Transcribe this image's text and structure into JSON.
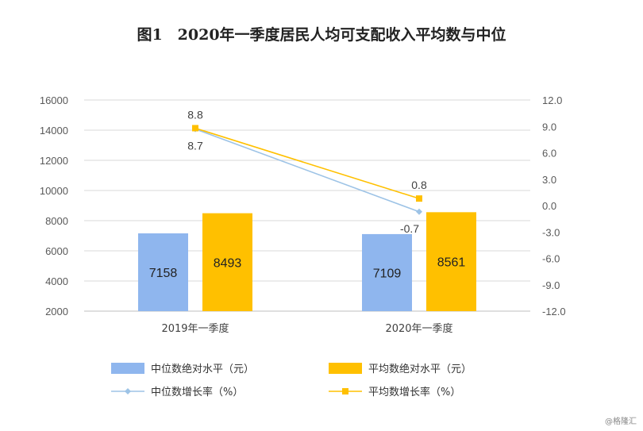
{
  "title": "图1　2020年一季度居民人均可支配收入平均数与中位",
  "watermark": "@格隆汇",
  "chart_data": {
    "type": "bar",
    "categories": [
      "2019年一季度",
      "2020年一季度"
    ],
    "left_axis": {
      "min": 2000,
      "max": 16000,
      "step": 2000,
      "ticks": [
        "2000",
        "4000",
        "6000",
        "8000",
        "10000",
        "12000",
        "14000",
        "16000"
      ]
    },
    "right_axis": {
      "min": -12,
      "max": 12,
      "step": 3,
      "ticks": [
        "-12.0",
        "-9.0",
        "-6.0",
        "-3.0",
        "0.0",
        "3.0",
        "6.0",
        "9.0",
        "12.0"
      ]
    },
    "grid": true,
    "legend_position": "bottom",
    "bar_series": [
      {
        "name": "中位数绝对水平（元）",
        "values": [
          7158,
          7109
        ],
        "labels": [
          "7158",
          "7109"
        ],
        "color": "#8fb6ee"
      },
      {
        "name": "平均数绝对水平（元）",
        "values": [
          8493,
          8561
        ],
        "labels": [
          "8493",
          "8561"
        ],
        "color": "#ffc000"
      }
    ],
    "line_series": [
      {
        "name": "中位数增长率（%）",
        "values": [
          8.7,
          -0.7
        ],
        "labels": [
          "8.7",
          "-0.7"
        ],
        "color": "#9dc3e6"
      },
      {
        "name": "平均数增长率（%）",
        "values": [
          8.8,
          0.8
        ],
        "labels": [
          "8.8",
          "0.8"
        ],
        "color": "#ffc000"
      }
    ]
  }
}
